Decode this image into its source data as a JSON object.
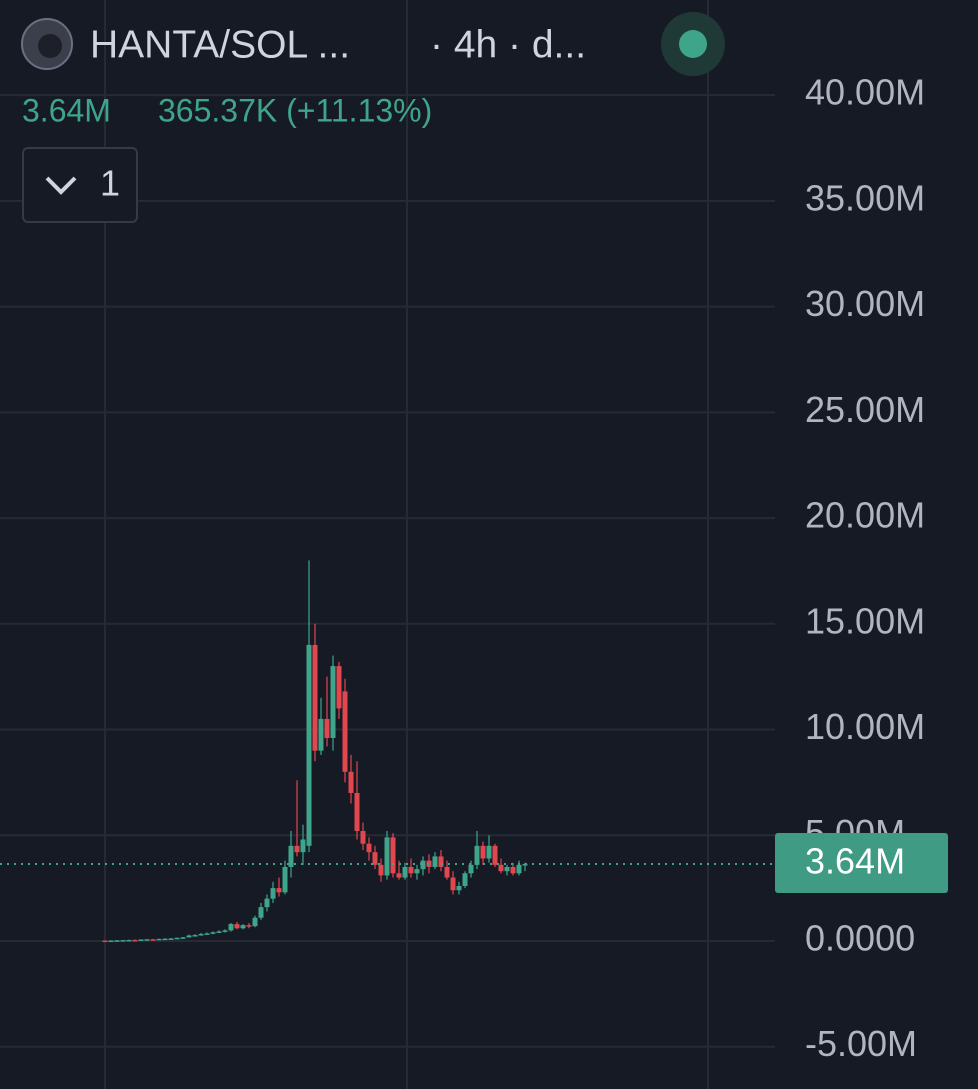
{
  "chart_data": {
    "type": "candlestick",
    "symbol": "HANTA/SOL ...",
    "interval": "· 4h · d...",
    "change": "365.37K (+11.13%)",
    "indicator_count": "1",
    "last_price": {
      "value": 3640000,
      "label": "3.64M"
    },
    "up_color": "#3fa58a",
    "down_color": "#e0474f",
    "ylim": [
      -7000000,
      44500000
    ],
    "yticks": [
      {
        "value": -5000000,
        "label": "-5.00M"
      },
      {
        "value": 0,
        "label": "0.0000"
      },
      {
        "value": 5000000,
        "label": "5.00M"
      },
      {
        "value": 10000000,
        "label": "10.00M"
      },
      {
        "value": 15000000,
        "label": "15.00M"
      },
      {
        "value": 20000000,
        "label": "20.00M"
      },
      {
        "value": 25000000,
        "label": "25.00M"
      },
      {
        "value": 30000000,
        "label": "30.00M"
      },
      {
        "value": 35000000,
        "label": "35.00M"
      },
      {
        "value": 40000000,
        "label": "40.00M"
      }
    ],
    "grid": true,
    "open": [
      20000,
      10000,
      20000,
      30000,
      40000,
      50000,
      40000,
      70000,
      80000,
      70000,
      100000,
      110000,
      120000,
      150000,
      170000,
      260000,
      280000,
      330000,
      360000,
      410000,
      450000,
      500000,
      800000,
      600000,
      750000,
      700000,
      1100000,
      1600000,
      2000000,
      2500000,
      2300000,
      3500000,
      4500000,
      4200000,
      4500000,
      14000000,
      9000000,
      10500000,
      9600000,
      13000000,
      11800000,
      8000000,
      7000000,
      5200000,
      4600000,
      4200000,
      3600000,
      3100000,
      4900000,
      3200000,
      3000000,
      3500000,
      3200000,
      3400000,
      3800000,
      3500000,
      4000000,
      3500000,
      3000000,
      2400000,
      2600000,
      3200000,
      3600000,
      4500000,
      3900000,
      4500000,
      3600000,
      3300000,
      3500000,
      3200000,
      3600000
    ],
    "high": [
      30000,
      30000,
      40000,
      50000,
      60000,
      70000,
      80000,
      90000,
      100000,
      110000,
      130000,
      140000,
      160000,
      190000,
      300000,
      320000,
      380000,
      400000,
      450000,
      500000,
      550000,
      850000,
      900000,
      800000,
      850000,
      1200000,
      1800000,
      2200000,
      2800000,
      3000000,
      3800000,
      5200000,
      7600000,
      5500000,
      18000000,
      15000000,
      11500000,
      12500000,
      13500000,
      13200000,
      12400000,
      8800000,
      8500000,
      5600000,
      4900000,
      4500000,
      3900000,
      5200000,
      5100000,
      3800000,
      3700000,
      3900000,
      3600000,
      4000000,
      4100000,
      4200000,
      4300000,
      3800000,
      3300000,
      2800000,
      3300000,
      3800000,
      5200000,
      4700000,
      5000000,
      4600000,
      3900000,
      3600000,
      3700000,
      3800000,
      3700000
    ],
    "low": [
      10000,
      10000,
      20000,
      20000,
      30000,
      30000,
      40000,
      50000,
      60000,
      60000,
      80000,
      90000,
      100000,
      130000,
      160000,
      220000,
      250000,
      300000,
      320000,
      380000,
      400000,
      450000,
      550000,
      550000,
      600000,
      650000,
      1000000,
      1400000,
      1800000,
      2100000,
      2200000,
      3000000,
      4000000,
      3600000,
      4200000,
      8500000,
      8800000,
      9200000,
      9000000,
      10500000,
      7500000,
      6500000,
      4800000,
      4300000,
      3800000,
      3400000,
      2800000,
      2900000,
      3000000,
      2900000,
      2900000,
      3000000,
      2900000,
      3100000,
      3200000,
      3400000,
      3300000,
      2900000,
      2200000,
      2200000,
      2500000,
      3000000,
      3400000,
      3600000,
      3700000,
      3500000,
      3200000,
      3100000,
      3100000,
      3100000,
      3300000
    ],
    "close": [
      10000,
      20000,
      30000,
      40000,
      50000,
      40000,
      70000,
      80000,
      70000,
      100000,
      110000,
      120000,
      150000,
      170000,
      260000,
      280000,
      330000,
      360000,
      410000,
      450000,
      500000,
      800000,
      600000,
      750000,
      700000,
      1100000,
      1600000,
      2000000,
      2500000,
      2300000,
      3500000,
      4500000,
      4200000,
      4800000,
      14000000,
      9000000,
      10500000,
      9600000,
      13000000,
      11000000,
      8000000,
      7000000,
      5200000,
      4600000,
      4200000,
      3600000,
      3100000,
      4900000,
      3200000,
      3000000,
      3500000,
      3200000,
      3400000,
      3800000,
      3500000,
      4000000,
      3500000,
      3000000,
      2400000,
      2600000,
      3200000,
      3600000,
      4500000,
      3900000,
      4500000,
      3600000,
      3300000,
      3500000,
      3200000,
      3600000,
      3640000
    ]
  }
}
